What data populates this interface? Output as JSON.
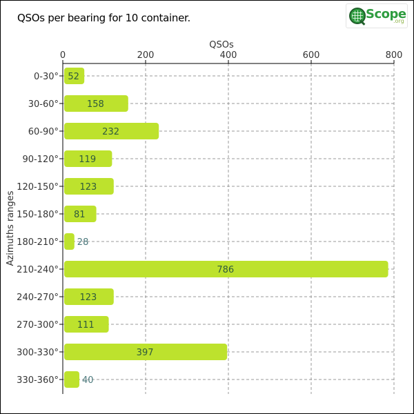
{
  "title": "QSOs per bearing for 10 container.",
  "logo": {
    "text": "Scope",
    "sub": ".org"
  },
  "chart_data": {
    "type": "bar",
    "orientation": "horizontal",
    "title": "QSOs per bearing for 10 container.",
    "xlabel": "QSOs",
    "ylabel": "Azimuths ranges",
    "categories": [
      "0-30°",
      "30-60°",
      "60-90°",
      "90-120°",
      "120-150°",
      "150-180°",
      "180-210°",
      "210-240°",
      "240-270°",
      "270-300°",
      "300-330°",
      "330-360°"
    ],
    "values": [
      52,
      158,
      232,
      119,
      123,
      81,
      28,
      786,
      123,
      111,
      397,
      40
    ],
    "xlim": [
      0,
      800
    ],
    "xticks": [
      0,
      200,
      400,
      600,
      800
    ],
    "x_axis_position": "top",
    "grid": true,
    "colors": {
      "bar": "#bde22d",
      "bar_label_inside": "#2f5a3c",
      "bar_label_outside": "#4d7a7d",
      "grid": "#999999",
      "axis": "#000000"
    }
  }
}
